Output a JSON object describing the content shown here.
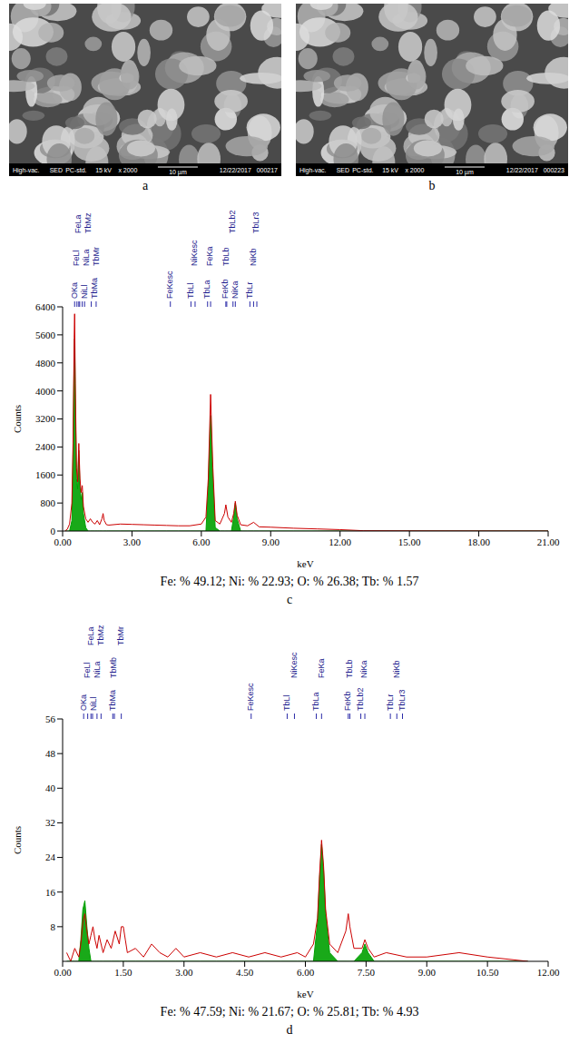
{
  "images": [
    {
      "label": "a",
      "info_left": [
        "High-vac.",
        "SED",
        "PC-std.",
        "15 kV",
        "x 2000"
      ],
      "scale_bar": "10 µm",
      "info_right": [
        "12/22/2017",
        "000217"
      ]
    },
    {
      "label": "b",
      "info_left": [
        "High-vac.",
        "SED",
        "PC-std.",
        "15 kV",
        "x 2000"
      ],
      "scale_bar": "10 µm",
      "info_right": [
        "12/22/2017",
        "000223"
      ]
    }
  ],
  "chart_data": [
    {
      "type": "line",
      "panel": "c",
      "caption": "Fe: % 49.12; Ni: % 22.93; O: % 26.38; Tb: % 1.57",
      "x_label": "keV",
      "y_label": "Counts",
      "x": [
        0.1,
        0.2,
        0.3,
        0.4,
        0.45,
        0.5,
        0.52,
        0.55,
        0.6,
        0.65,
        0.7,
        0.75,
        0.8,
        0.85,
        0.9,
        1.0,
        1.1,
        1.2,
        1.3,
        1.4,
        1.5,
        1.6,
        1.7,
        1.75,
        1.8,
        1.9,
        2.0,
        2.5,
        3.0,
        3.5,
        4.0,
        4.5,
        5.0,
        5.5,
        6.0,
        6.2,
        6.3,
        6.4,
        6.5,
        6.6,
        6.8,
        7.0,
        7.06,
        7.15,
        7.3,
        7.4,
        7.47,
        7.55,
        7.7,
        8.0,
        8.26,
        8.5,
        9.0,
        10.0,
        11.0,
        12.0,
        13.0,
        15.0,
        18.0,
        21.0
      ],
      "series": [
        {
          "type": "area",
          "color": "#00a000",
          "values": [
            0,
            0,
            0,
            300,
            2200,
            5000,
            5500,
            3800,
            1500,
            1200,
            2300,
            1300,
            900,
            1100,
            500,
            100,
            0,
            0,
            0,
            0,
            0,
            0,
            0,
            0,
            0,
            0,
            0,
            0,
            0,
            0,
            0,
            0,
            0,
            0,
            0,
            0,
            1300,
            3300,
            1500,
            100,
            0,
            0,
            0,
            0,
            0,
            400,
            800,
            350,
            0,
            0,
            0,
            0,
            0,
            0,
            0,
            0,
            0,
            0,
            0,
            0
          ]
        },
        {
          "type": "line",
          "color": "#cc0000",
          "values": [
            0,
            50,
            200,
            800,
            2500,
            5500,
            6200,
            4200,
            1800,
            1400,
            2500,
            1500,
            1100,
            1300,
            700,
            350,
            250,
            350,
            250,
            200,
            300,
            180,
            350,
            500,
            300,
            180,
            170,
            200,
            190,
            180,
            170,
            160,
            150,
            150,
            200,
            400,
            1500,
            3900,
            1800,
            300,
            200,
            500,
            750,
            400,
            250,
            500,
            850,
            450,
            180,
            150,
            250,
            120,
            110,
            80,
            60,
            40,
            10,
            5,
            2,
            0
          ]
        }
      ],
      "xlim": [
        0,
        21
      ],
      "xticks": [
        {
          "value": 0,
          "label": "0.00"
        },
        {
          "value": 3,
          "label": "3.00"
        },
        {
          "value": 6,
          "label": "6.00"
        },
        {
          "value": 9,
          "label": "9.00"
        },
        {
          "value": 12,
          "label": "12.00"
        },
        {
          "value": 15,
          "label": "15.00"
        },
        {
          "value": 18,
          "label": "18.00"
        },
        {
          "value": 21,
          "label": "21.00"
        }
      ],
      "ylim": [
        0,
        6400
      ],
      "yticks": [
        0,
        800,
        1600,
        2400,
        3200,
        4000,
        4800,
        5600,
        6400
      ],
      "grid": false,
      "annotations": [
        {
          "text": "OKa",
          "x": 0.52
        },
        {
          "text": "FeLl",
          "x": 0.62
        },
        {
          "text": "FeLa",
          "x": 0.7
        },
        {
          "text": "NiLl",
          "x": 0.74
        },
        {
          "text": "NiLa",
          "x": 0.85
        },
        {
          "text": "TbMz",
          "x": 0.95
        },
        {
          "text": "TbMa",
          "x": 1.24
        },
        {
          "text": "TbMr",
          "x": 1.45
        },
        {
          "text": "FeKesc",
          "x": 4.66
        },
        {
          "text": "TbLl",
          "x": 5.55
        },
        {
          "text": "NiKesc",
          "x": 5.73
        },
        {
          "text": "TbLa",
          "x": 6.27
        },
        {
          "text": "FeKa",
          "x": 6.4
        },
        {
          "text": "FeKb",
          "x": 7.06
        },
        {
          "text": "TbLb",
          "x": 7.1
        },
        {
          "text": "TbLb2",
          "x": 7.37
        },
        {
          "text": "NiKa",
          "x": 7.47
        },
        {
          "text": "TbLr",
          "x": 8.1
        },
        {
          "text": "NiKb",
          "x": 8.26
        },
        {
          "text": "TbLr3",
          "x": 8.4
        }
      ]
    },
    {
      "type": "line",
      "panel": "d",
      "caption": "Fe: % 47.59; Ni: % 21.67; O: % 25.81; Tb: % 4.93",
      "x_label": "keV",
      "y_label": "Counts",
      "x": [
        0.1,
        0.2,
        0.3,
        0.4,
        0.45,
        0.5,
        0.55,
        0.6,
        0.65,
        0.7,
        0.75,
        0.8,
        0.85,
        0.9,
        1.0,
        1.1,
        1.2,
        1.3,
        1.4,
        1.45,
        1.5,
        1.55,
        1.6,
        1.8,
        2.0,
        2.2,
        2.4,
        2.6,
        2.8,
        3.0,
        3.4,
        3.8,
        4.2,
        4.6,
        5.0,
        5.4,
        5.8,
        6.0,
        6.2,
        6.3,
        6.35,
        6.4,
        6.45,
        6.5,
        6.6,
        6.8,
        7.0,
        7.06,
        7.1,
        7.2,
        7.4,
        7.47,
        7.55,
        7.7,
        8.0,
        8.5,
        9.0,
        9.8,
        10.5,
        11.5
      ],
      "series": [
        {
          "type": "area",
          "color": "#00a000",
          "values": [
            0,
            0,
            0,
            0,
            5,
            12,
            14,
            8,
            3,
            0,
            0,
            0,
            0,
            0,
            0,
            0,
            0,
            0,
            0,
            0,
            0,
            0,
            0,
            0,
            0,
            0,
            0,
            0,
            0,
            0,
            0,
            0,
            0,
            0,
            0,
            0,
            0,
            0,
            0,
            9,
            19,
            27,
            21,
            11,
            2,
            0,
            0,
            0,
            0,
            0,
            2,
            4,
            2,
            0,
            0,
            0,
            0,
            0,
            0,
            0
          ]
        },
        {
          "type": "line",
          "color": "#cc0000",
          "values": [
            2,
            0,
            3,
            1,
            4,
            9,
            11,
            7,
            4,
            6,
            8,
            5,
            3,
            6,
            2,
            5,
            3,
            7,
            4,
            8,
            8,
            5,
            2,
            3,
            1,
            4,
            2,
            1,
            3,
            1,
            2,
            1,
            2,
            1,
            2,
            1,
            2,
            1,
            4,
            10,
            20,
            28,
            22,
            12,
            4,
            2,
            7,
            11,
            8,
            3,
            3,
            5,
            3,
            1,
            2,
            1,
            1,
            2,
            1,
            0
          ]
        }
      ],
      "xlim": [
        0,
        12
      ],
      "xticks": [
        {
          "value": 0,
          "label": "0.00"
        },
        {
          "value": 1.5,
          "label": "1.50"
        },
        {
          "value": 3,
          "label": "3.00"
        },
        {
          "value": 4.5,
          "label": "4.50"
        },
        {
          "value": 6,
          "label": "6.00"
        },
        {
          "value": 7.5,
          "label": "7.50"
        },
        {
          "value": 9,
          "label": "9.00"
        },
        {
          "value": 10.5,
          "label": "10.50"
        },
        {
          "value": 12,
          "label": "12.00"
        }
      ],
      "ylim": [
        0,
        56
      ],
      "yticks": [
        8,
        16,
        24,
        32,
        40,
        48,
        56
      ],
      "grid": false,
      "annotations": [
        {
          "text": "OKa",
          "x": 0.52
        },
        {
          "text": "FeLl",
          "x": 0.62
        },
        {
          "text": "FeLa",
          "x": 0.7
        },
        {
          "text": "NiLl",
          "x": 0.74
        },
        {
          "text": "NiLa",
          "x": 0.85
        },
        {
          "text": "TbMz",
          "x": 0.95
        },
        {
          "text": "TbMa",
          "x": 1.24
        },
        {
          "text": "TbMb",
          "x": 1.28
        },
        {
          "text": "TbMr",
          "x": 1.45
        },
        {
          "text": "FeKesc",
          "x": 4.66
        },
        {
          "text": "TbLl",
          "x": 5.55
        },
        {
          "text": "NiKesc",
          "x": 5.73
        },
        {
          "text": "TbLa",
          "x": 6.27
        },
        {
          "text": "FeKa",
          "x": 6.4
        },
        {
          "text": "FeKb",
          "x": 7.06
        },
        {
          "text": "TbLb",
          "x": 7.1
        },
        {
          "text": "TbLb2",
          "x": 7.37
        },
        {
          "text": "NiKa",
          "x": 7.47
        },
        {
          "text": "TbLr",
          "x": 8.1
        },
        {
          "text": "NiKb",
          "x": 8.26
        },
        {
          "text": "TbLr3",
          "x": 8.4
        }
      ]
    }
  ]
}
